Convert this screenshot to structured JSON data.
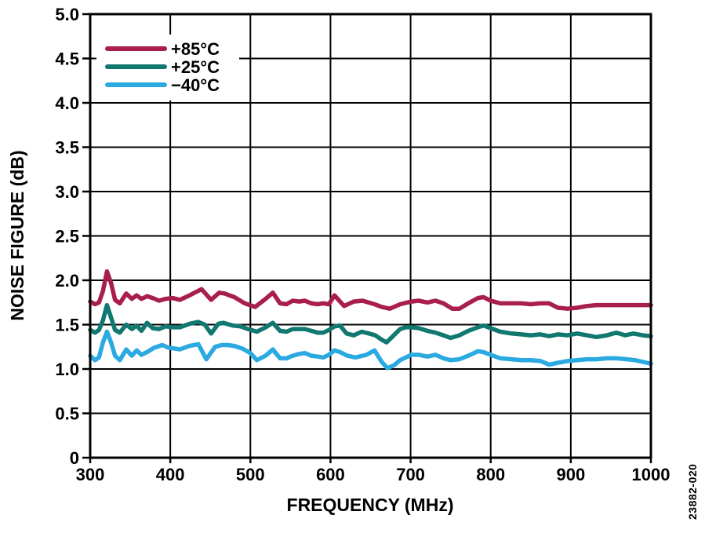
{
  "figure": {
    "watermark": "23882-020",
    "background": "#ffffff",
    "grid_color": "#000000",
    "border_color": "#000000"
  },
  "chart_data": {
    "type": "line",
    "title": "",
    "xlabel": "FREQUENCY (MHz)",
    "ylabel": "NOISE FIGURE (dB)",
    "xlim": [
      300,
      1000
    ],
    "ylim": [
      0,
      5
    ],
    "grid": true,
    "legend_position": "top-left",
    "x_ticks": {
      "values": [
        300,
        400,
        500,
        600,
        700,
        800,
        900,
        1000
      ],
      "labels": [
        "300",
        "400",
        "500",
        "600",
        "700",
        "800",
        "900",
        "1000"
      ]
    },
    "y_ticks": {
      "values": [
        0,
        0.5,
        1.0,
        1.5,
        2.0,
        2.5,
        3.0,
        3.5,
        4.0,
        4.5,
        5.0
      ],
      "labels": [
        "0",
        "0.5",
        "1.0",
        "1.5",
        "2.0",
        "2.5",
        "3.0",
        "3.5",
        "4.0",
        "4.5",
        "5.0"
      ]
    },
    "series": [
      {
        "name": "+85°C",
        "color": "#A81E4D",
        "points": [
          [
            300,
            1.76
          ],
          [
            306,
            1.73
          ],
          [
            311,
            1.75
          ],
          [
            316,
            1.88
          ],
          [
            321,
            2.1
          ],
          [
            326,
            1.97
          ],
          [
            331,
            1.78
          ],
          [
            337,
            1.74
          ],
          [
            345,
            1.85
          ],
          [
            352,
            1.79
          ],
          [
            358,
            1.83
          ],
          [
            364,
            1.79
          ],
          [
            371,
            1.82
          ],
          [
            378,
            1.8
          ],
          [
            386,
            1.77
          ],
          [
            394,
            1.79
          ],
          [
            403,
            1.8
          ],
          [
            412,
            1.78
          ],
          [
            424,
            1.83
          ],
          [
            439,
            1.9
          ],
          [
            451,
            1.78
          ],
          [
            461,
            1.86
          ],
          [
            468,
            1.85
          ],
          [
            480,
            1.81
          ],
          [
            493,
            1.74
          ],
          [
            506,
            1.7
          ],
          [
            519,
            1.79
          ],
          [
            528,
            1.86
          ],
          [
            537,
            1.74
          ],
          [
            545,
            1.73
          ],
          [
            553,
            1.77
          ],
          [
            561,
            1.76
          ],
          [
            568,
            1.77
          ],
          [
            576,
            1.74
          ],
          [
            584,
            1.73
          ],
          [
            591,
            1.74
          ],
          [
            598,
            1.73
          ],
          [
            605,
            1.83
          ],
          [
            617,
            1.71
          ],
          [
            629,
            1.76
          ],
          [
            640,
            1.77
          ],
          [
            655,
            1.73
          ],
          [
            664,
            1.7
          ],
          [
            674,
            1.68
          ],
          [
            687,
            1.73
          ],
          [
            701,
            1.76
          ],
          [
            710,
            1.77
          ],
          [
            721,
            1.75
          ],
          [
            731,
            1.77
          ],
          [
            741,
            1.74
          ],
          [
            752,
            1.68
          ],
          [
            761,
            1.68
          ],
          [
            772,
            1.74
          ],
          [
            784,
            1.8
          ],
          [
            791,
            1.81
          ],
          [
            800,
            1.77
          ],
          [
            812,
            1.74
          ],
          [
            826,
            1.74
          ],
          [
            838,
            1.74
          ],
          [
            850,
            1.73
          ],
          [
            862,
            1.74
          ],
          [
            873,
            1.74
          ],
          [
            884,
            1.69
          ],
          [
            896,
            1.68
          ],
          [
            908,
            1.69
          ],
          [
            920,
            1.71
          ],
          [
            932,
            1.72
          ],
          [
            955,
            1.72
          ],
          [
            978,
            1.72
          ],
          [
            1000,
            1.72
          ]
        ]
      },
      {
        "name": "+25°C",
        "color": "#117870",
        "points": [
          [
            300,
            1.44
          ],
          [
            306,
            1.41
          ],
          [
            311,
            1.44
          ],
          [
            316,
            1.55
          ],
          [
            321,
            1.72
          ],
          [
            326,
            1.58
          ],
          [
            331,
            1.44
          ],
          [
            337,
            1.41
          ],
          [
            345,
            1.5
          ],
          [
            352,
            1.45
          ],
          [
            358,
            1.49
          ],
          [
            364,
            1.43
          ],
          [
            371,
            1.52
          ],
          [
            378,
            1.46
          ],
          [
            386,
            1.45
          ],
          [
            394,
            1.48
          ],
          [
            403,
            1.47
          ],
          [
            412,
            1.47
          ],
          [
            424,
            1.51
          ],
          [
            435,
            1.53
          ],
          [
            443,
            1.5
          ],
          [
            451,
            1.4
          ],
          [
            460,
            1.51
          ],
          [
            466,
            1.52
          ],
          [
            478,
            1.49
          ],
          [
            488,
            1.48
          ],
          [
            497,
            1.45
          ],
          [
            508,
            1.42
          ],
          [
            519,
            1.47
          ],
          [
            528,
            1.52
          ],
          [
            537,
            1.43
          ],
          [
            545,
            1.42
          ],
          [
            553,
            1.45
          ],
          [
            561,
            1.45
          ],
          [
            568,
            1.45
          ],
          [
            576,
            1.43
          ],
          [
            584,
            1.41
          ],
          [
            591,
            1.41
          ],
          [
            598,
            1.44
          ],
          [
            605,
            1.48
          ],
          [
            612,
            1.49
          ],
          [
            620,
            1.4
          ],
          [
            629,
            1.38
          ],
          [
            639,
            1.42
          ],
          [
            648,
            1.4
          ],
          [
            656,
            1.38
          ],
          [
            664,
            1.33
          ],
          [
            670,
            1.3
          ],
          [
            679,
            1.38
          ],
          [
            687,
            1.45
          ],
          [
            694,
            1.47
          ],
          [
            701,
            1.47
          ],
          [
            710,
            1.46
          ],
          [
            721,
            1.43
          ],
          [
            731,
            1.41
          ],
          [
            741,
            1.38
          ],
          [
            750,
            1.35
          ],
          [
            761,
            1.38
          ],
          [
            772,
            1.43
          ],
          [
            784,
            1.47
          ],
          [
            791,
            1.49
          ],
          [
            800,
            1.46
          ],
          [
            812,
            1.42
          ],
          [
            826,
            1.4
          ],
          [
            838,
            1.39
          ],
          [
            850,
            1.38
          ],
          [
            862,
            1.39
          ],
          [
            873,
            1.37
          ],
          [
            884,
            1.39
          ],
          [
            896,
            1.38
          ],
          [
            908,
            1.4
          ],
          [
            920,
            1.38
          ],
          [
            932,
            1.36
          ],
          [
            945,
            1.38
          ],
          [
            957,
            1.41
          ],
          [
            968,
            1.38
          ],
          [
            978,
            1.4
          ],
          [
            990,
            1.38
          ],
          [
            1000,
            1.37
          ]
        ]
      },
      {
        "name": "−40°C",
        "color": "#2BAAE1",
        "points": [
          [
            300,
            1.15
          ],
          [
            306,
            1.1
          ],
          [
            311,
            1.13
          ],
          [
            316,
            1.3
          ],
          [
            321,
            1.42
          ],
          [
            326,
            1.3
          ],
          [
            331,
            1.15
          ],
          [
            337,
            1.1
          ],
          [
            345,
            1.22
          ],
          [
            352,
            1.15
          ],
          [
            358,
            1.21
          ],
          [
            364,
            1.16
          ],
          [
            371,
            1.19
          ],
          [
            380,
            1.24
          ],
          [
            390,
            1.27
          ],
          [
            398,
            1.24
          ],
          [
            406,
            1.23
          ],
          [
            412,
            1.22
          ],
          [
            424,
            1.26
          ],
          [
            435,
            1.28
          ],
          [
            445,
            1.11
          ],
          [
            456,
            1.25
          ],
          [
            464,
            1.27
          ],
          [
            472,
            1.27
          ],
          [
            480,
            1.26
          ],
          [
            490,
            1.23
          ],
          [
            500,
            1.18
          ],
          [
            508,
            1.1
          ],
          [
            519,
            1.15
          ],
          [
            528,
            1.22
          ],
          [
            537,
            1.12
          ],
          [
            545,
            1.12
          ],
          [
            553,
            1.15
          ],
          [
            561,
            1.17
          ],
          [
            568,
            1.18
          ],
          [
            576,
            1.15
          ],
          [
            584,
            1.14
          ],
          [
            591,
            1.13
          ],
          [
            598,
            1.16
          ],
          [
            605,
            1.21
          ],
          [
            612,
            1.19
          ],
          [
            621,
            1.15
          ],
          [
            631,
            1.13
          ],
          [
            645,
            1.16
          ],
          [
            655,
            1.21
          ],
          [
            664,
            1.08
          ],
          [
            671,
            1.01
          ],
          [
            679,
            1.04
          ],
          [
            687,
            1.1
          ],
          [
            694,
            1.13
          ],
          [
            701,
            1.16
          ],
          [
            710,
            1.16
          ],
          [
            721,
            1.14
          ],
          [
            731,
            1.16
          ],
          [
            741,
            1.12
          ],
          [
            750,
            1.1
          ],
          [
            761,
            1.11
          ],
          [
            772,
            1.15
          ],
          [
            784,
            1.2
          ],
          [
            791,
            1.19
          ],
          [
            800,
            1.16
          ],
          [
            812,
            1.12
          ],
          [
            826,
            1.11
          ],
          [
            838,
            1.1
          ],
          [
            850,
            1.1
          ],
          [
            862,
            1.09
          ],
          [
            873,
            1.05
          ],
          [
            884,
            1.07
          ],
          [
            896,
            1.09
          ],
          [
            908,
            1.1
          ],
          [
            920,
            1.11
          ],
          [
            932,
            1.11
          ],
          [
            945,
            1.12
          ],
          [
            957,
            1.12
          ],
          [
            970,
            1.11
          ],
          [
            980,
            1.1
          ],
          [
            990,
            1.08
          ],
          [
            1000,
            1.06
          ]
        ]
      }
    ]
  }
}
